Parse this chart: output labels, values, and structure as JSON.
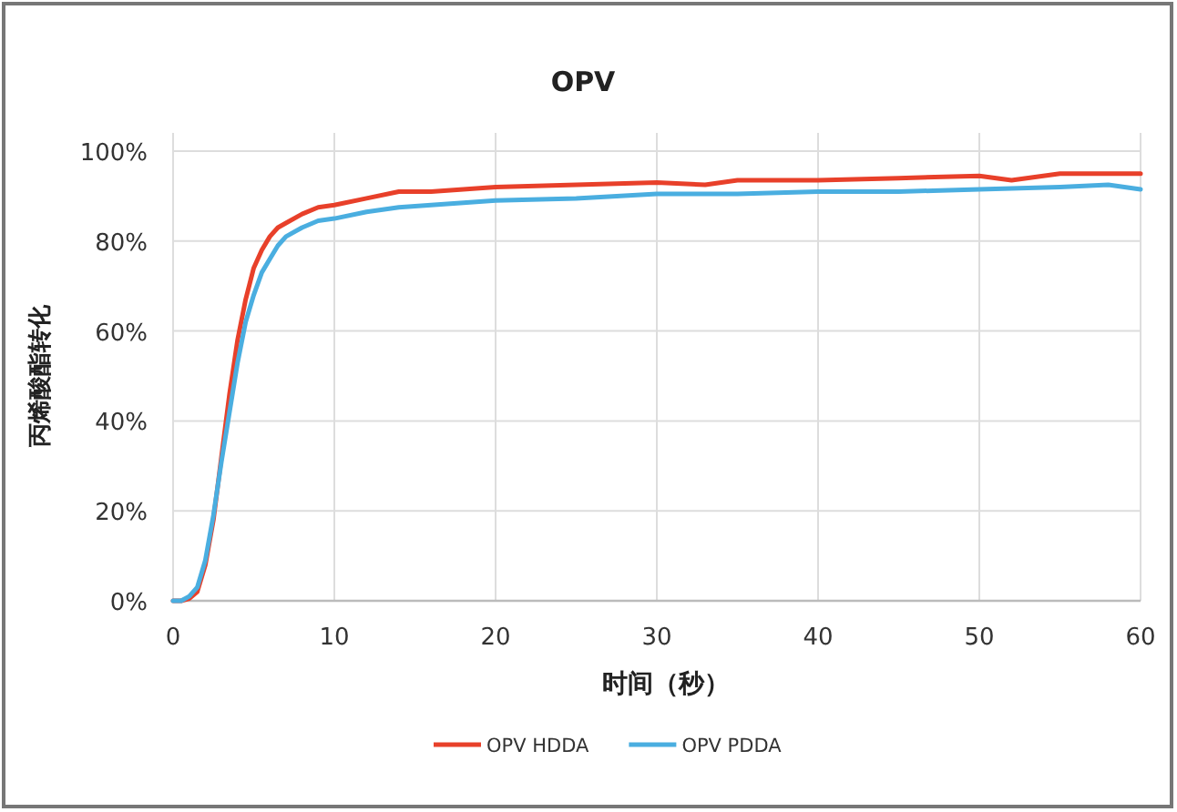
{
  "chart_data": {
    "type": "line",
    "title": "OPV",
    "xlabel": "时间（秒）",
    "ylabel": "丙烯酸酯转化",
    "xlim": [
      0,
      60
    ],
    "xticks": [
      0,
      10,
      20,
      30,
      40,
      50,
      60
    ],
    "ylim": [
      0,
      100
    ],
    "yticks": [
      {
        "value": 0,
        "label": "0%"
      },
      {
        "value": 20,
        "label": "20%"
      },
      {
        "value": 40,
        "label": "40%"
      },
      {
        "value": 60,
        "label": "60%"
      },
      {
        "value": 80,
        "label": "80%"
      },
      {
        "value": 100,
        "label": "100%"
      }
    ],
    "grid": true,
    "legend": "bottom",
    "marker": "none",
    "line_style": "solid",
    "series": [
      {
        "name": "OPV HDDA",
        "color": "#e8402a",
        "x": [
          0,
          0.5,
          1,
          1.5,
          2,
          2.5,
          3,
          3.5,
          4,
          4.5,
          5,
          5.5,
          6,
          6.5,
          7,
          8,
          9,
          10,
          12,
          14,
          16,
          18,
          20,
          25,
          30,
          33,
          35,
          40,
          45,
          50,
          52,
          55,
          58,
          60
        ],
        "values": [
          0,
          0,
          0.5,
          2,
          8,
          18,
          32,
          46,
          58,
          67,
          74,
          78,
          81,
          83,
          84,
          86,
          87.5,
          88,
          89.5,
          91,
          91,
          91.5,
          92,
          92.5,
          93,
          92.5,
          93.5,
          93.5,
          94,
          94.5,
          93.5,
          95,
          95,
          95
        ]
      },
      {
        "name": "OPV PDDA",
        "color": "#4aaee0",
        "x": [
          0,
          0.5,
          1,
          1.5,
          2,
          2.5,
          3,
          3.5,
          4,
          4.5,
          5,
          5.5,
          6,
          6.5,
          7,
          8,
          9,
          10,
          12,
          14,
          16,
          18,
          20,
          25,
          30,
          35,
          40,
          45,
          50,
          55,
          58,
          60
        ],
        "values": [
          0,
          0,
          1,
          3,
          9,
          19,
          31,
          42,
          53,
          62,
          68,
          73,
          76,
          79,
          81,
          83,
          84.5,
          85,
          86.5,
          87.5,
          88,
          88.5,
          89,
          89.5,
          90.5,
          90.5,
          91,
          91,
          91.5,
          92,
          92.5,
          91.5
        ]
      }
    ]
  }
}
